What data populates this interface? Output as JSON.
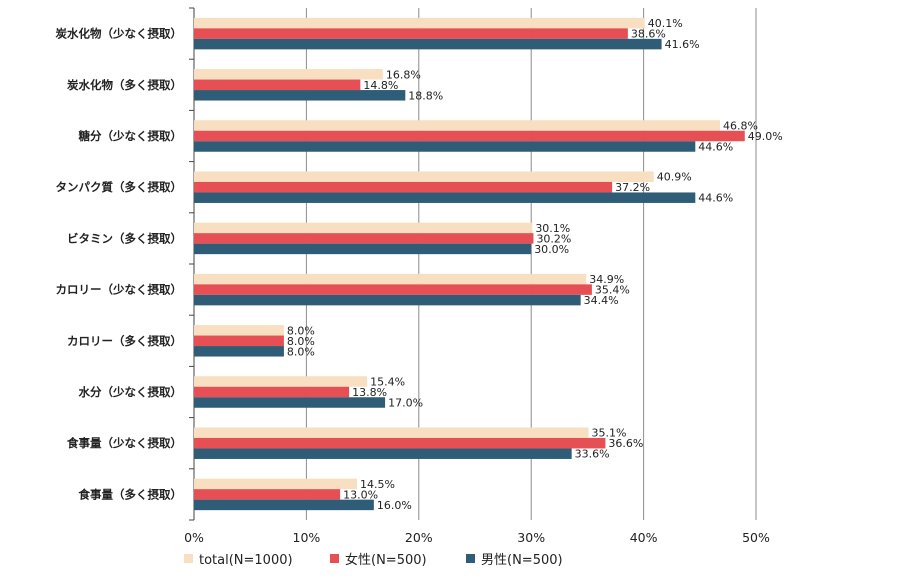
{
  "chart_data": {
    "type": "bar",
    "orientation": "horizontal",
    "categories": [
      "炭水化物（少なく摂取）",
      "炭水化物（多く摂取）",
      "糖分（少なく摂取）",
      "タンパク質（多く摂取）",
      "ビタミン（多く摂取）",
      "カロリー（少なく摂取）",
      "カロリー（多く摂取）",
      "水分（少なく摂取）",
      "食事量（少なく摂取）",
      "食事量（多く摂取）"
    ],
    "series": [
      {
        "name": "total(N=1000)",
        "color": "#f9dfc1",
        "values": [
          40.1,
          16.8,
          46.8,
          40.9,
          30.1,
          34.9,
          8.0,
          15.4,
          35.1,
          14.5
        ]
      },
      {
        "name": "女性(N=500)",
        "color": "#e65054",
        "values": [
          38.6,
          14.8,
          49.0,
          37.2,
          30.2,
          35.4,
          8.0,
          13.8,
          36.6,
          13.0
        ]
      },
      {
        "name": "男性(N=500)",
        "color": "#2f5d78",
        "values": [
          41.6,
          18.8,
          44.6,
          44.6,
          30.0,
          34.4,
          8.0,
          17.0,
          33.6,
          16.0
        ]
      }
    ],
    "xlim": [
      0,
      50
    ],
    "xticks": [
      "0%",
      "10%",
      "20%",
      "30%",
      "40%",
      "50%"
    ],
    "grid": true,
    "legend_position": "bottom",
    "value_suffix": "%"
  }
}
